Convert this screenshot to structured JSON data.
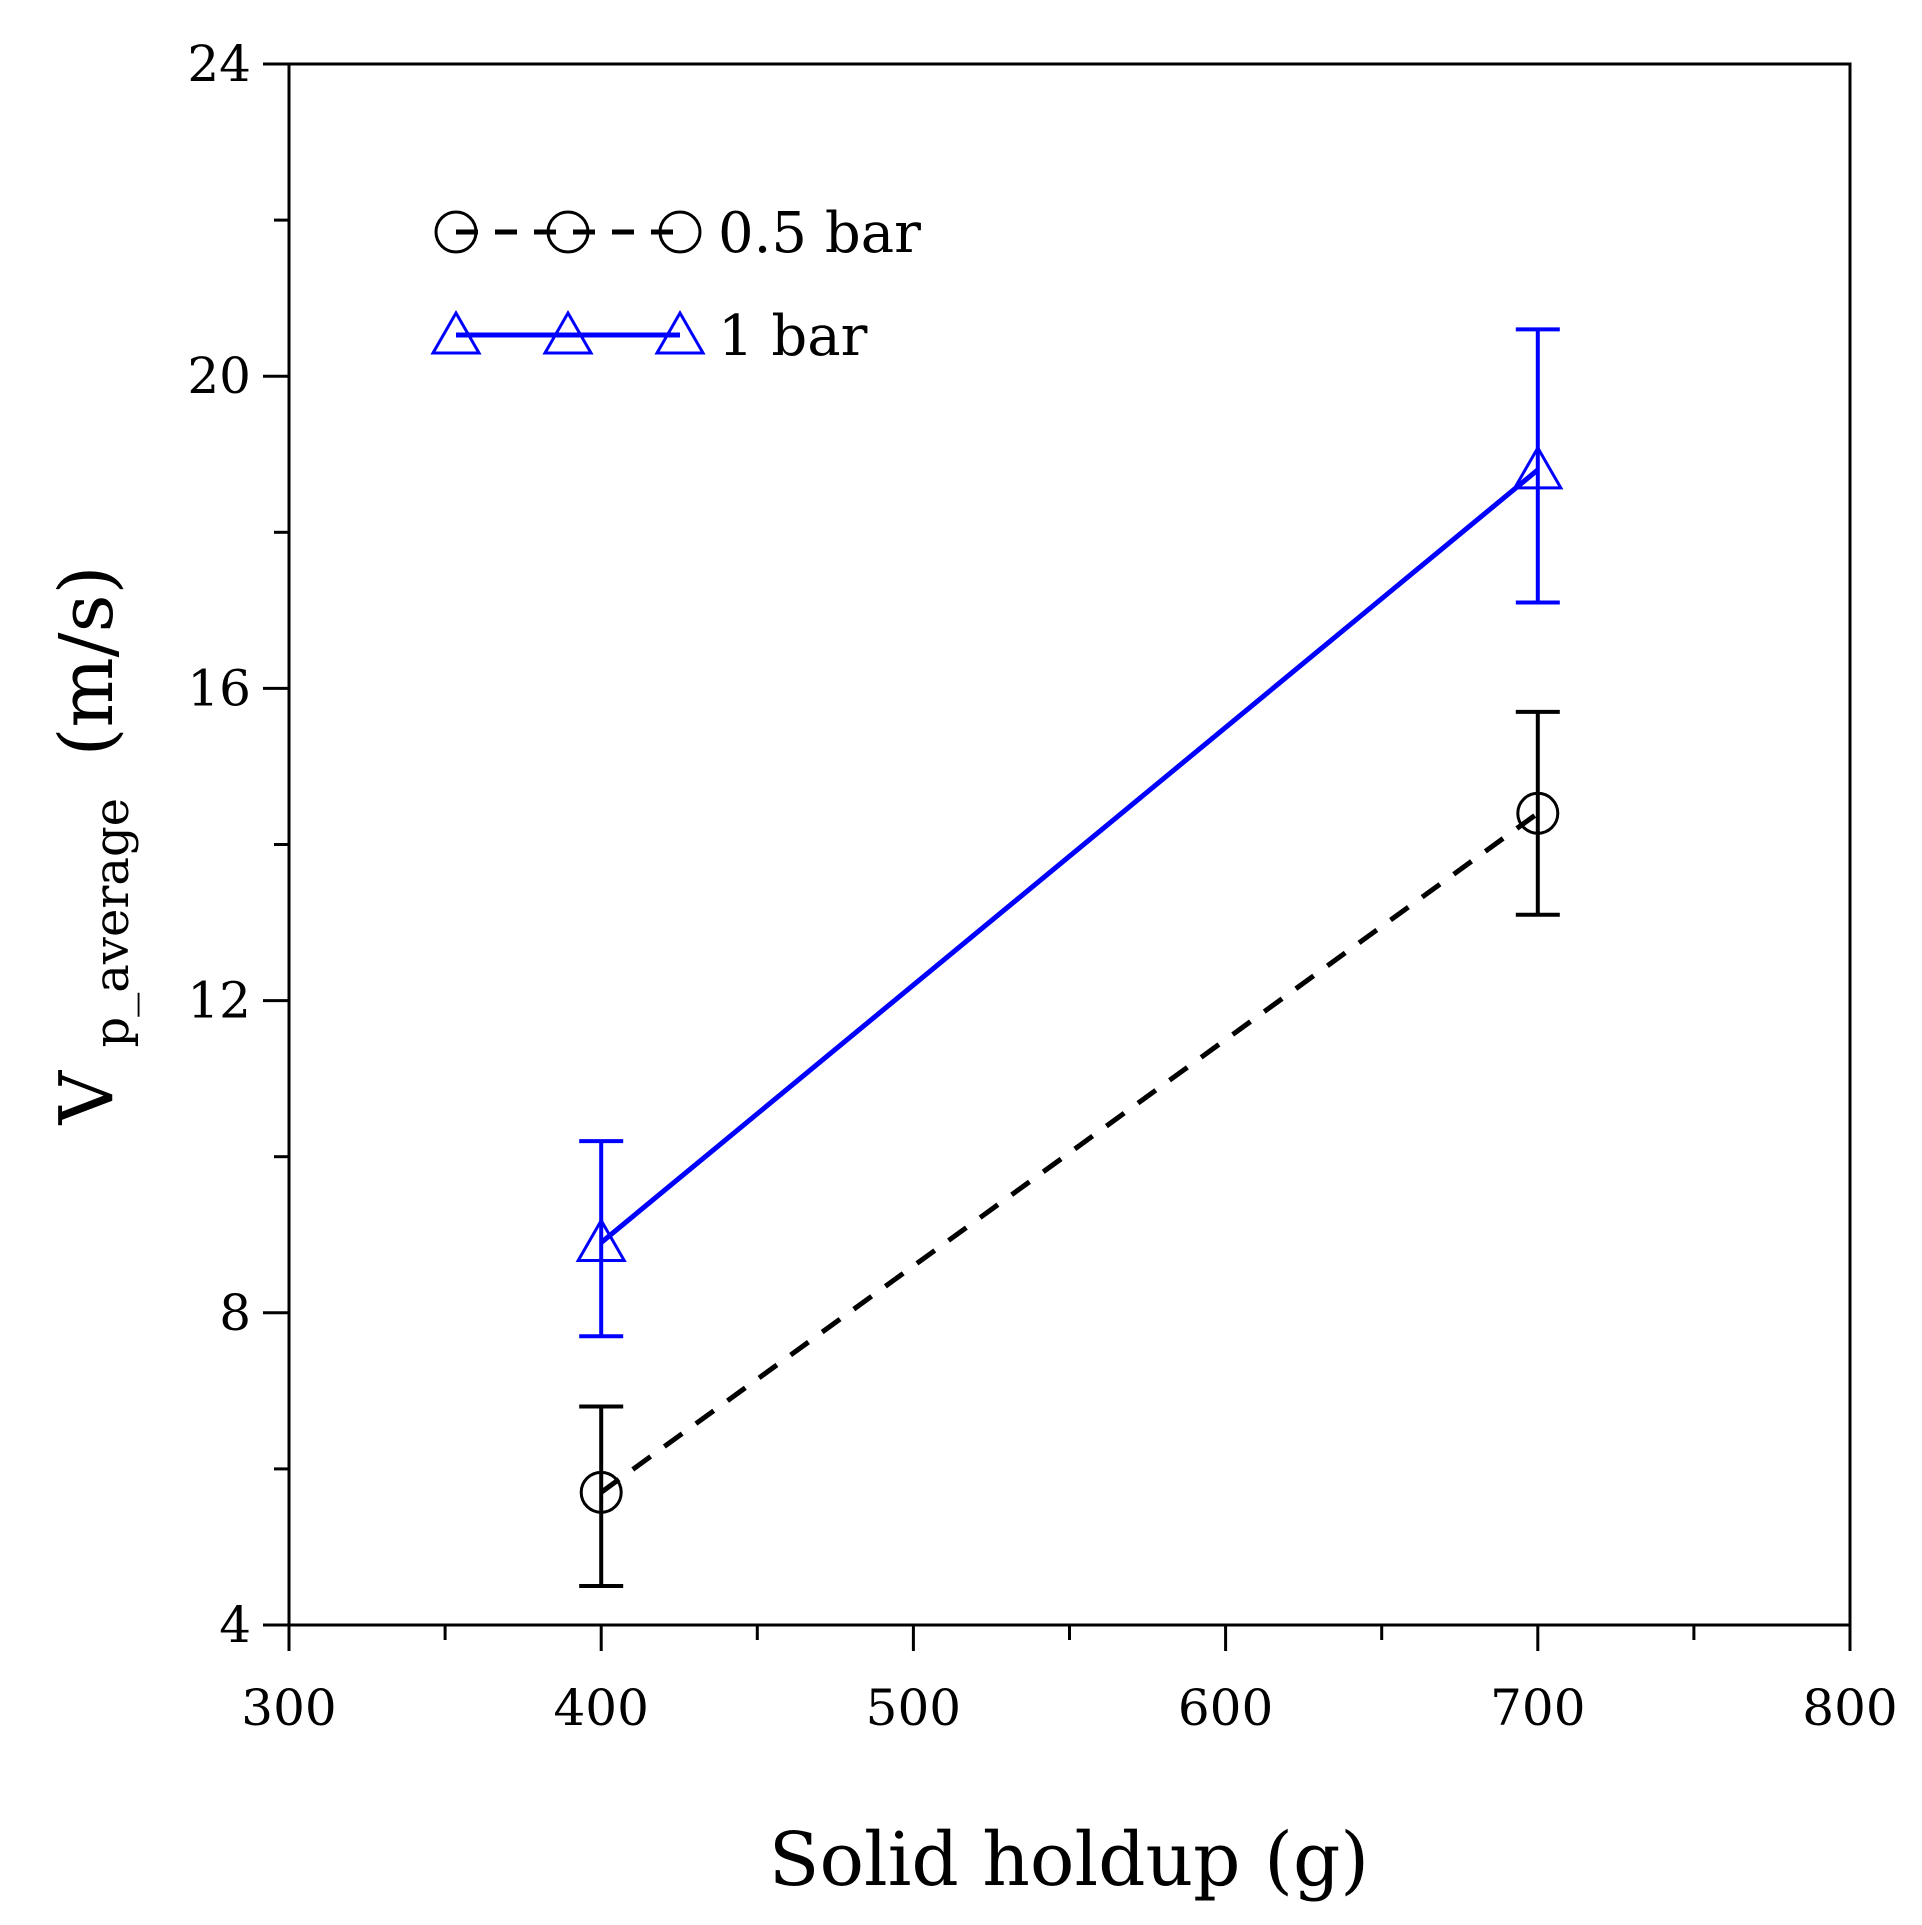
{
  "chart_data": {
    "type": "line",
    "xlabel": "Solid holdup (g)",
    "ylabel": {
      "main": "V",
      "subscript": "p_average",
      "unit": "(m/s)"
    },
    "xlim": [
      300,
      800
    ],
    "ylim": [
      4,
      24
    ],
    "xticks": [
      300,
      400,
      500,
      600,
      700,
      800
    ],
    "xtick_labels": [
      "300",
      "400",
      "500",
      "600",
      "700",
      "800"
    ],
    "x_minor_step": 50,
    "yticks": [
      4,
      8,
      12,
      16,
      20,
      24
    ],
    "ytick_labels": [
      "4",
      "8",
      "12",
      "16",
      "20",
      "24"
    ],
    "y_minor_step": 2,
    "grid": false,
    "legend_position": "top-left",
    "series": [
      {
        "name": "0.5 bar",
        "color": "#000000",
        "line_style": "dashed",
        "marker": "circle",
        "x": [
          400,
          700
        ],
        "y": [
          5.7,
          14.4
        ],
        "err_low": [
          4.5,
          13.1
        ],
        "err_high": [
          6.8,
          15.7
        ]
      },
      {
        "name": "1 bar",
        "color": "#0000ff",
        "line_style": "solid",
        "marker": "triangle",
        "x": [
          400,
          700
        ],
        "y": [
          8.9,
          18.8
        ],
        "err_low": [
          7.7,
          17.1
        ],
        "err_high": [
          10.2,
          20.6
        ]
      }
    ]
  }
}
